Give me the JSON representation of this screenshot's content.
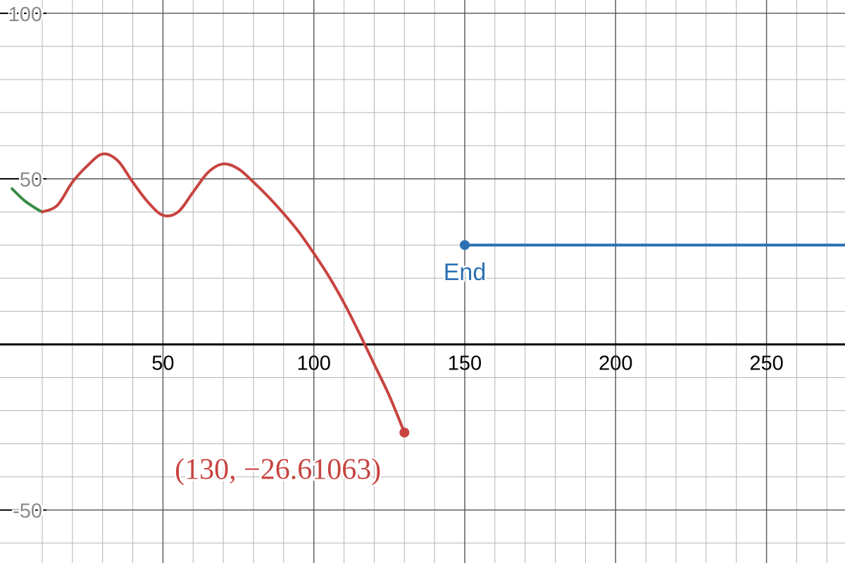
{
  "chart_data": {
    "type": "line",
    "xlim": [
      -4,
      276
    ],
    "ylim": [
      -66,
      104
    ],
    "grid": true,
    "x_ticks": [
      {
        "value": 50,
        "label": "50"
      },
      {
        "value": 100,
        "label": "100"
      },
      {
        "value": 150,
        "label": "150"
      },
      {
        "value": 200,
        "label": "200"
      },
      {
        "value": 250,
        "label": "250"
      }
    ],
    "y_ticks": [
      {
        "value": 100,
        "label": "100"
      },
      {
        "value": 50,
        "label": "50"
      },
      {
        "value": -50,
        "label": "-50"
      }
    ],
    "series": [
      {
        "color": "#388c46",
        "x": [
          0,
          4,
          8,
          10
        ],
        "y": [
          47,
          43.5,
          41,
          40
        ]
      },
      {
        "color": "#c74440",
        "x": [
          10,
          15,
          20,
          25,
          30,
          35,
          40,
          45,
          50,
          55,
          60,
          65,
          70,
          75,
          80,
          85,
          90,
          95,
          100,
          105,
          110,
          115,
          120,
          125,
          130
        ],
        "y": [
          40,
          42,
          49,
          54,
          57.5,
          55.5,
          49,
          43,
          39,
          40,
          46,
          52,
          54.5,
          53,
          49,
          44.5,
          39.5,
          34,
          27.5,
          20.5,
          12.5,
          3.5,
          -6,
          -15.5,
          -26.61063
        ]
      },
      {
        "color": "#2d70b3",
        "x": [
          150,
          276
        ],
        "y": [
          30,
          30
        ]
      }
    ],
    "points": [
      {
        "x": 130,
        "y": -26.61063,
        "color": "#c74440"
      },
      {
        "x": 150,
        "y": 30,
        "color": "#2d70b3"
      }
    ],
    "annotations": [
      {
        "text": "(130, −26.61063)",
        "color": "#c74440",
        "anchor_x": 130,
        "anchor_y": -26.61063
      },
      {
        "text": "End",
        "color": "#2d70b3",
        "anchor_x": 150,
        "anchor_y": 30
      }
    ]
  }
}
